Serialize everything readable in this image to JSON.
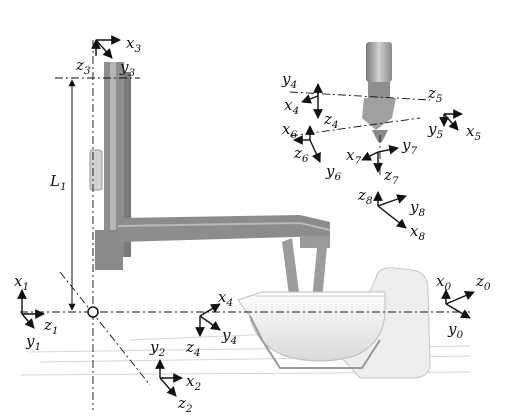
{
  "colors": {
    "ink": "#111111",
    "frame": "#8a8a8a",
    "frame_dark": "#6d6d6d",
    "frame_light": "#b9b9b9",
    "tank": "#efefef",
    "tank_edge": "#c8c8c8",
    "floor": "#d8d8d8",
    "tool": "#9b9b9b"
  },
  "labels": {
    "z3": {
      "base": "z",
      "sub": "3"
    },
    "x3": {
      "base": "x",
      "sub": "3"
    },
    "y3": {
      "base": "y",
      "sub": "3"
    },
    "L1": {
      "base": "L",
      "sub": "1"
    },
    "x1": {
      "base": "x",
      "sub": "1"
    },
    "z1": {
      "base": "z",
      "sub": "1"
    },
    "y1": {
      "base": "y",
      "sub": "1"
    },
    "y2": {
      "base": "y",
      "sub": "2"
    },
    "x2": {
      "base": "x",
      "sub": "2"
    },
    "z2": {
      "base": "z",
      "sub": "2"
    },
    "x4a": {
      "base": "x",
      "sub": "4"
    },
    "z4a": {
      "base": "z",
      "sub": "4"
    },
    "y4a": {
      "base": "y",
      "sub": "4"
    },
    "y4": {
      "base": "y",
      "sub": "4"
    },
    "x4": {
      "base": "x",
      "sub": "4"
    },
    "z4": {
      "base": "z",
      "sub": "4"
    },
    "z5": {
      "base": "z",
      "sub": "5"
    },
    "y5": {
      "base": "y",
      "sub": "5"
    },
    "x5": {
      "base": "x",
      "sub": "5"
    },
    "x6": {
      "base": "x",
      "sub": "6"
    },
    "z6": {
      "base": "z",
      "sub": "6"
    },
    "y6": {
      "base": "y",
      "sub": "6"
    },
    "x7": {
      "base": "x",
      "sub": "7"
    },
    "y7": {
      "base": "y",
      "sub": "7"
    },
    "z7": {
      "base": "z",
      "sub": "7"
    },
    "z8": {
      "base": "z",
      "sub": "8"
    },
    "y8": {
      "base": "y",
      "sub": "8"
    },
    "x8": {
      "base": "x",
      "sub": "8"
    },
    "x0": {
      "base": "x",
      "sub": "0"
    },
    "z0": {
      "base": "z",
      "sub": "0"
    },
    "y0": {
      "base": "y",
      "sub": "0"
    }
  }
}
